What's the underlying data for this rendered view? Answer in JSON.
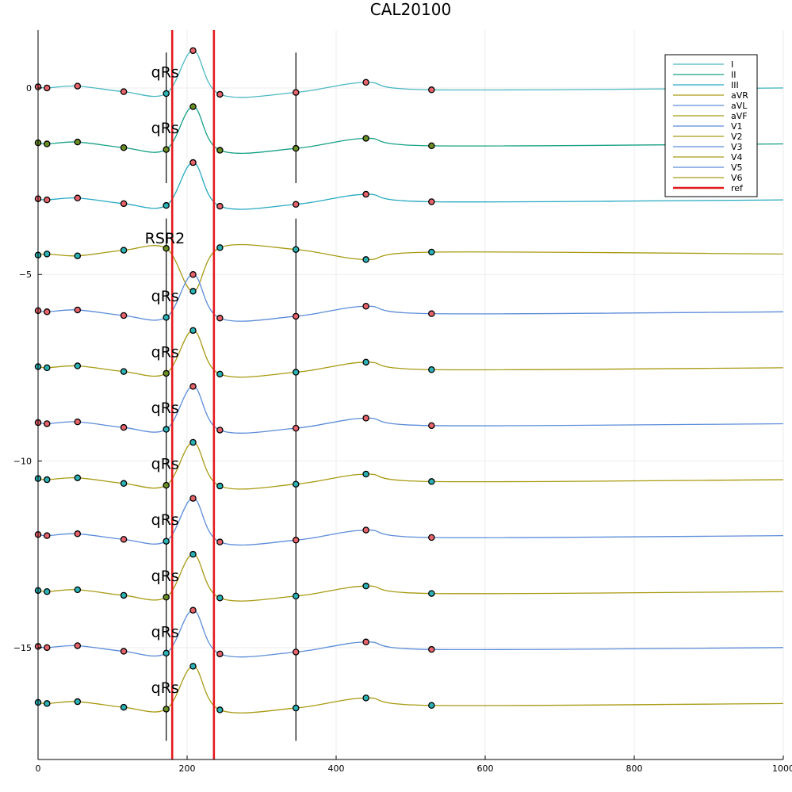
{
  "chart_data": {
    "type": "line",
    "title": "CAL20100",
    "xlabel": "",
    "ylabel": "",
    "xlim": [
      0,
      1000
    ],
    "ylim": [
      -18,
      1.55
    ],
    "x_ticks": [
      0,
      200,
      400,
      600,
      800,
      1000
    ],
    "y_ticks": [
      0,
      -5,
      -10,
      -15
    ],
    "grid": true,
    "legend_position": "top-right",
    "beat_template": {
      "x": [
        0,
        12,
        53,
        115,
        172,
        208,
        244,
        346,
        440,
        528,
        1000
      ],
      "y": [
        0.03,
        0.0,
        0.05,
        -0.1,
        -0.15,
        1.0,
        -0.17,
        -0.12,
        0.15,
        -0.05,
        0.0
      ]
    },
    "series": [
      {
        "name": "I",
        "color": "#4bb8c4",
        "offset": 0.0,
        "label": "qRs"
      },
      {
        "name": "II",
        "color": "#16a085",
        "offset": -1.5,
        "label": "qRs"
      },
      {
        "name": "III",
        "color": "#25a9c2",
        "offset": -3.0,
        "label": ""
      },
      {
        "name": "aVR",
        "color": "#a89a12",
        "offset": -4.45,
        "label": "RSR2",
        "inverted": true
      },
      {
        "name": "aVL",
        "color": "#5b8cd9",
        "offset": -6.0,
        "label": "qRs"
      },
      {
        "name": "aVF",
        "color": "#a89a12",
        "offset": -7.5,
        "label": "qRs"
      },
      {
        "name": "V1",
        "color": "#5b8cd9",
        "offset": -9.0,
        "label": "qRs"
      },
      {
        "name": "V2",
        "color": "#a89a12",
        "offset": -10.5,
        "label": "qRs"
      },
      {
        "name": "V3",
        "color": "#5b8cd9",
        "offset": -12.0,
        "label": "qRs"
      },
      {
        "name": "V4",
        "color": "#a89a12",
        "offset": -13.5,
        "label": "qRs"
      },
      {
        "name": "V5",
        "color": "#5b8cd9",
        "offset": -15.0,
        "label": "qRs"
      },
      {
        "name": "V6",
        "color": "#a89a12",
        "offset": -16.5,
        "label": "qRs"
      }
    ],
    "reference_lines": {
      "name": "ref",
      "color": "#e31a1c",
      "x": [
        180,
        236
      ]
    },
    "marker_lines": {
      "color": "#000000",
      "x": [
        172,
        346
      ]
    },
    "marker_colors": {
      "pink": "#e8636b",
      "teal": "#2ab2b5",
      "olive": "#6b8e23"
    }
  }
}
